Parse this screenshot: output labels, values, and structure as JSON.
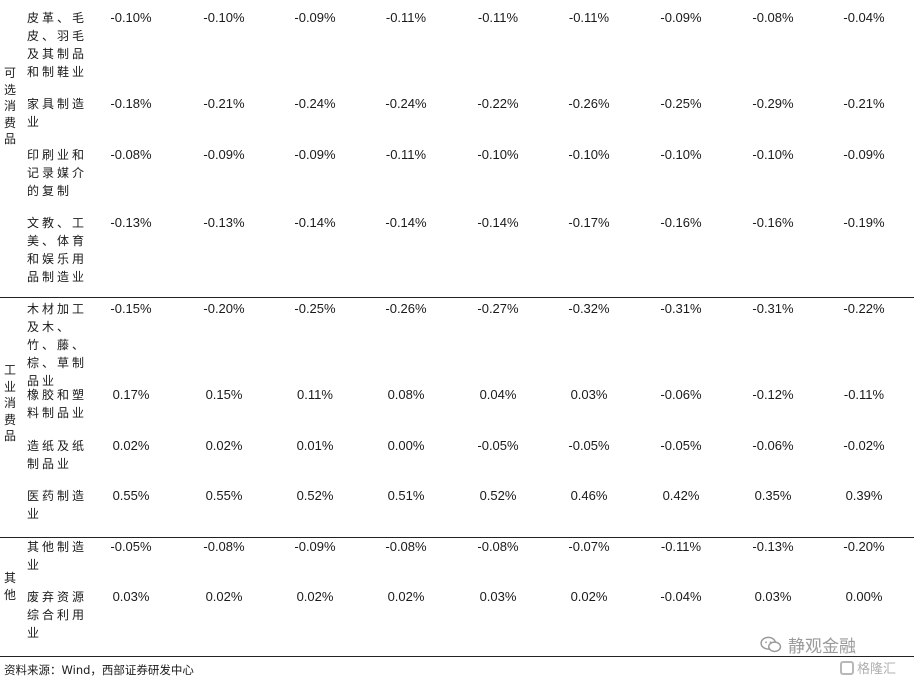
{
  "groups": [
    {
      "label": "可选消费品",
      "rows": [
        {
          "name": "皮革、毛皮、羽毛及其制品和制鞋业",
          "values": [
            "-0.10%",
            "-0.10%",
            "-0.09%",
            "-0.11%",
            "-0.11%",
            "-0.11%",
            "-0.09%",
            "-0.08%",
            "-0.04%"
          ]
        },
        {
          "name": "家具制造业",
          "values": [
            "-0.18%",
            "-0.21%",
            "-0.24%",
            "-0.24%",
            "-0.22%",
            "-0.26%",
            "-0.25%",
            "-0.29%",
            "-0.21%"
          ]
        },
        {
          "name": "印刷业和记录媒介的复制",
          "values": [
            "-0.08%",
            "-0.09%",
            "-0.09%",
            "-0.11%",
            "-0.10%",
            "-0.10%",
            "-0.10%",
            "-0.10%",
            "-0.09%"
          ]
        },
        {
          "name": "文教、工美、体育和娱乐用品制造业",
          "values": [
            "-0.13%",
            "-0.13%",
            "-0.14%",
            "-0.14%",
            "-0.14%",
            "-0.17%",
            "-0.16%",
            "-0.16%",
            "-0.19%"
          ]
        }
      ]
    },
    {
      "label": "工业消费品",
      "rows": [
        {
          "name": "木材加工及木、竹、藤、棕、草制品业",
          "values": [
            "-0.15%",
            "-0.20%",
            "-0.25%",
            "-0.26%",
            "-0.27%",
            "-0.32%",
            "-0.31%",
            "-0.31%",
            "-0.22%"
          ]
        },
        {
          "name": "橡胶和塑料制品业",
          "values": [
            "0.17%",
            "0.15%",
            "0.11%",
            "0.08%",
            "0.04%",
            "0.03%",
            "-0.06%",
            "-0.12%",
            "-0.11%"
          ]
        },
        {
          "name": "造纸及纸制品业",
          "values": [
            "0.02%",
            "0.02%",
            "0.01%",
            "0.00%",
            "-0.05%",
            "-0.05%",
            "-0.05%",
            "-0.06%",
            "-0.02%"
          ]
        },
        {
          "name": "医药制造业",
          "values": [
            "0.55%",
            "0.55%",
            "0.52%",
            "0.51%",
            "0.52%",
            "0.46%",
            "0.42%",
            "0.35%",
            "0.39%"
          ]
        }
      ]
    },
    {
      "label": "其他",
      "rows": [
        {
          "name": "其他制造业",
          "values": [
            "-0.05%",
            "-0.08%",
            "-0.09%",
            "-0.08%",
            "-0.08%",
            "-0.07%",
            "-0.11%",
            "-0.13%",
            "-0.20%"
          ]
        },
        {
          "name": "废弃资源综合利用业",
          "values": [
            "0.03%",
            "0.02%",
            "0.02%",
            "0.02%",
            "0.03%",
            "0.02%",
            "-0.04%",
            "0.03%",
            "0.00%"
          ]
        }
      ]
    }
  ],
  "source": "资料来源：Wind，西部证券研发中心",
  "watermark": {
    "primary": "静观金融",
    "primary_icon": "wechat-icon",
    "secondary": "格隆汇",
    "secondary_icon": "gelonghui-logo-icon"
  }
}
